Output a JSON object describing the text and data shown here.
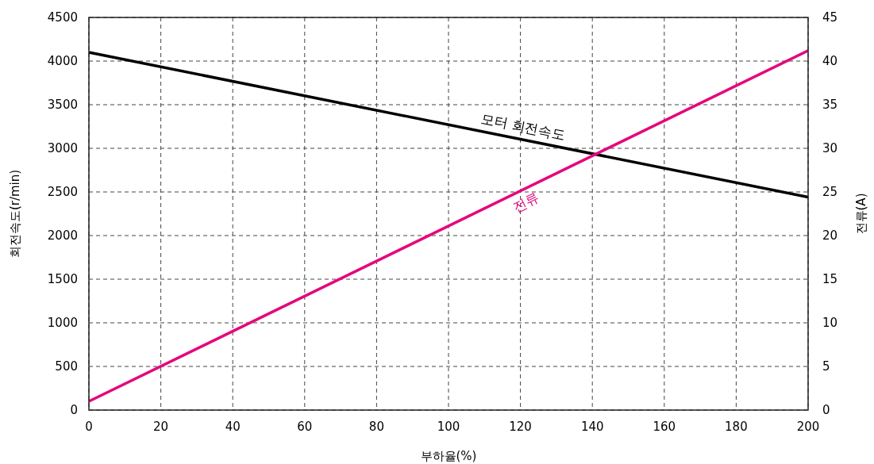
{
  "chart_data": {
    "type": "line",
    "xlabel": "부하율(%)",
    "ylabel": "회전속도(r/min)",
    "y2label": "전류(A)",
    "x": [
      0,
      200
    ],
    "series": [
      {
        "name": "모터 회전속도",
        "color": "#000000",
        "values": [
          4100,
          2440
        ]
      },
      {
        "name": "전류",
        "color": "#e4087c",
        "values": [
          1.0,
          41.2
        ],
        "axis": "y2"
      }
    ],
    "xlim": [
      0,
      200
    ],
    "xticks": [
      0,
      20,
      40,
      60,
      80,
      100,
      120,
      140,
      160,
      180,
      200
    ],
    "ylim": [
      0,
      4500
    ],
    "yticks": [
      0,
      500,
      1000,
      1500,
      2000,
      2500,
      3000,
      3500,
      4000,
      4500
    ],
    "y2lim": [
      0,
      45
    ],
    "y2ticks": [
      0,
      5,
      10,
      15,
      20,
      25,
      30,
      35,
      40,
      45
    ],
    "grid": true,
    "line_style": "solid"
  }
}
